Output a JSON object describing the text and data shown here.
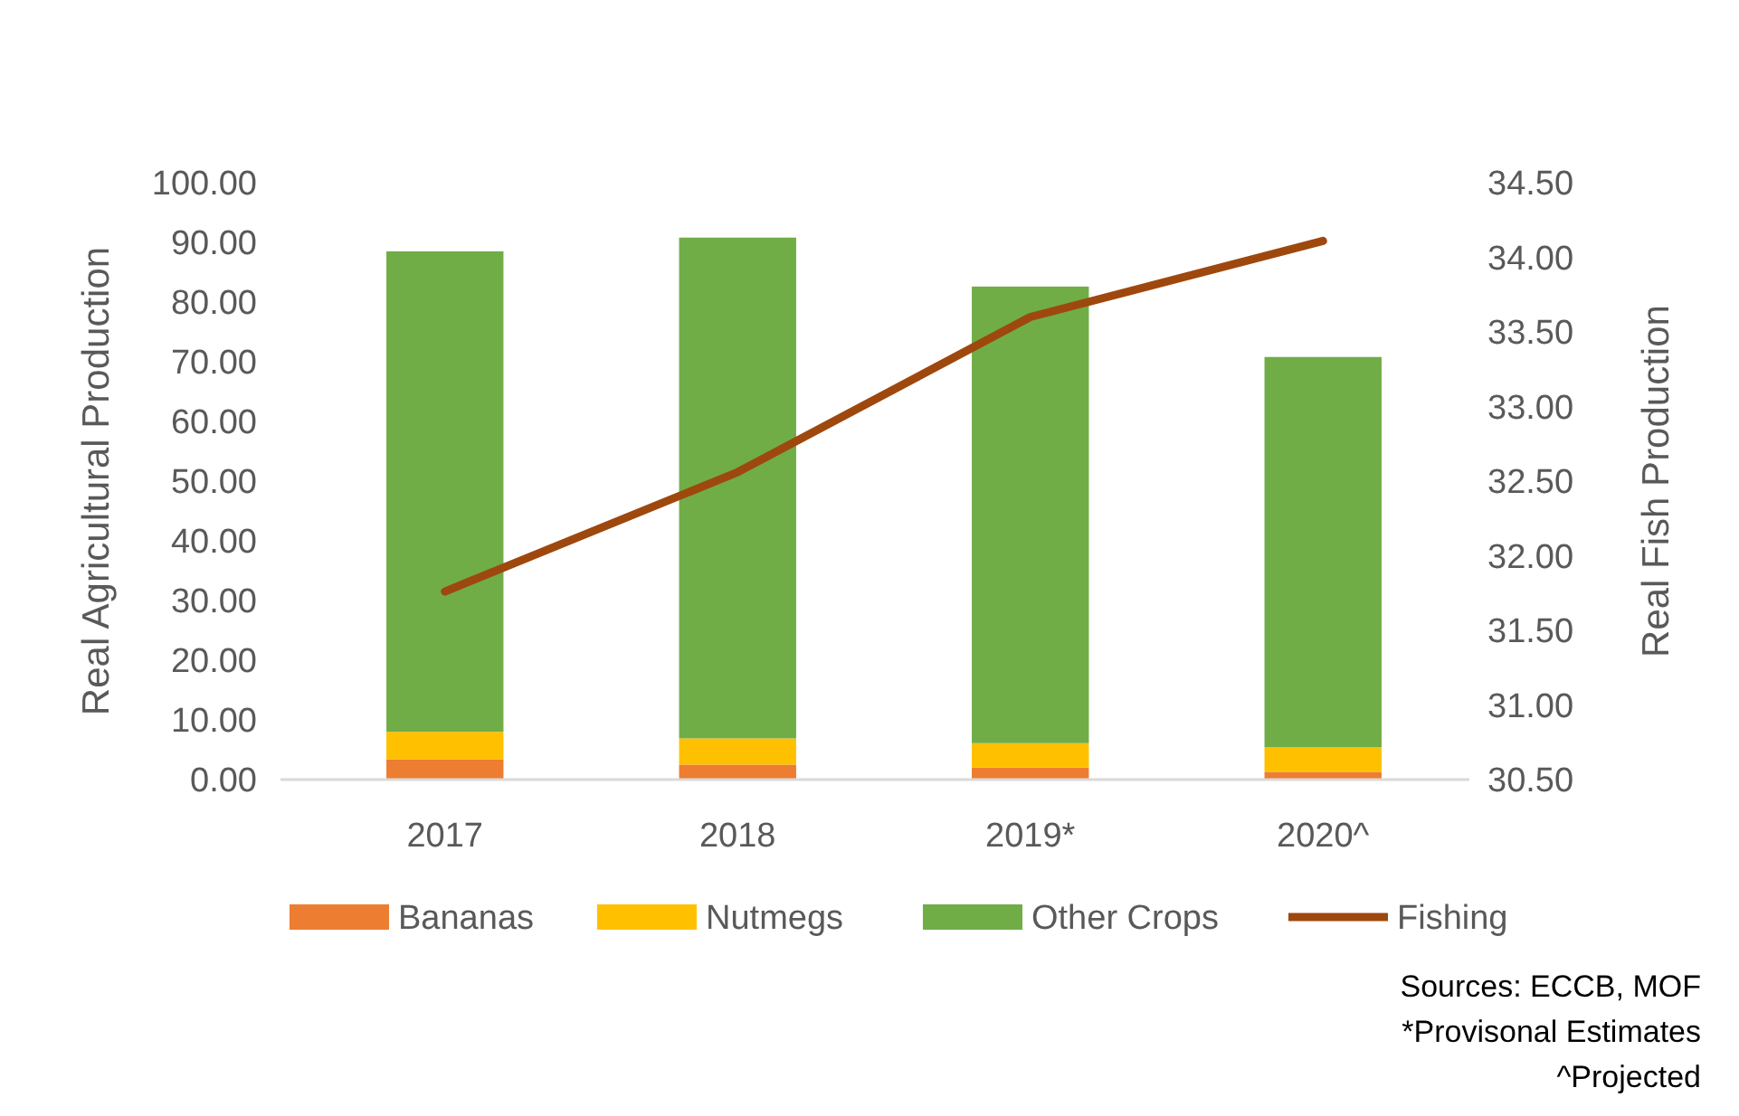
{
  "chart_data": {
    "type": "bar",
    "stacked": true,
    "categories": [
      "2017",
      "2018",
      "2019*",
      "2020^"
    ],
    "series": [
      {
        "name": "Bananas",
        "color": "#ed7d31",
        "values": [
          3.4,
          2.5,
          2.0,
          1.3
        ]
      },
      {
        "name": "Nutmegs",
        "color": "#ffc000",
        "values": [
          4.6,
          4.4,
          4.1,
          4.1
        ]
      },
      {
        "name": "Other Crops",
        "color": "#70ad47",
        "values": [
          80.5,
          83.9,
          76.5,
          65.4
        ]
      },
      {
        "name": "Fishing",
        "type": "line",
        "axis": "y2",
        "color": "#9e480e",
        "values": [
          31.76,
          32.56,
          33.6,
          34.11
        ]
      }
    ],
    "ylabel": "Real Agricultural Production",
    "y2label": "Real Fish Production",
    "ylim": [
      0,
      100
    ],
    "yticks": [
      {
        "value": 0,
        "label": "0.00"
      },
      {
        "value": 10,
        "label": "10.00"
      },
      {
        "value": 20,
        "label": "20.00"
      },
      {
        "value": 30,
        "label": "30.00"
      },
      {
        "value": 40,
        "label": "40.00"
      },
      {
        "value": 50,
        "label": "50.00"
      },
      {
        "value": 60,
        "label": "60.00"
      },
      {
        "value": 70,
        "label": "70.00"
      },
      {
        "value": 80,
        "label": "80.00"
      },
      {
        "value": 90,
        "label": "90.00"
      },
      {
        "value": 100,
        "label": "100.00"
      }
    ],
    "y2lim": [
      30.5,
      34.5
    ],
    "y2ticks": [
      {
        "value": 30.5,
        "label": "30.50"
      },
      {
        "value": 31,
        "label": "31.00"
      },
      {
        "value": 31.5,
        "label": "31.50"
      },
      {
        "value": 32,
        "label": "32.00"
      },
      {
        "value": 32.5,
        "label": "32.50"
      },
      {
        "value": 33,
        "label": "33.00"
      },
      {
        "value": 33.5,
        "label": "33.50"
      },
      {
        "value": 34,
        "label": "34.00"
      },
      {
        "value": 34.5,
        "label": "34.50"
      }
    ],
    "legend": "bottom",
    "grid": false,
    "annotations": [
      "Sources: ECCB, MOF",
      "*Provisonal Estimates",
      "^Projected"
    ]
  }
}
